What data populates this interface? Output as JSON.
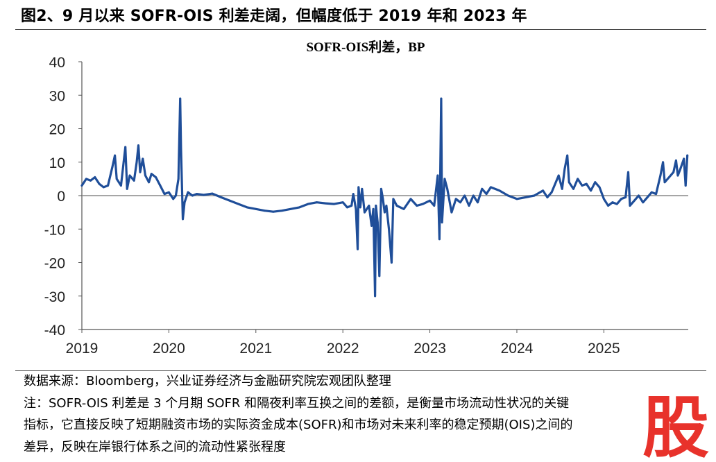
{
  "figure": {
    "title": "图2、9 月以来 SOFR-OIS 利差走阔，但幅度低于 2019 年和 2023 年",
    "source": "数据来源：Bloomberg，兴业证券经济与金融研究院宏观团队整理",
    "note_lines": [
      "注：SOFR-OIS 利差是 3 个月期 SOFR 和隔夜利率互换之间的差额，是衡量市场流动性状况的关键",
      "指标，它直接反映了短期融资市场的实际资金成本(SOFR)和市场对未来利率的稳定预期(OIS)之间的",
      "差异，反映在岸银行体系之间的流动性紧张程度"
    ],
    "watermark": "股"
  },
  "chart_data": {
    "type": "line",
    "title": "SOFR-OIS利差，BP",
    "xlabel": "",
    "ylabel": "",
    "ylim": [
      -40,
      40
    ],
    "yticks": [
      40,
      30,
      20,
      10,
      0,
      -10,
      -20,
      -30,
      -40
    ],
    "xlim": [
      2019.0,
      2025.97
    ],
    "xticks": [
      2019,
      2020,
      2021,
      2022,
      2023,
      2024,
      2025
    ],
    "grid": false,
    "zero_line": true,
    "colors": {
      "series": "#1f4e99",
      "zero_line": "#888888",
      "axis": "#555555"
    },
    "series": [
      {
        "name": "",
        "points": [
          [
            2019.0,
            3.0
          ],
          [
            2019.05,
            5.0
          ],
          [
            2019.1,
            4.5
          ],
          [
            2019.15,
            5.5
          ],
          [
            2019.2,
            3.5
          ],
          [
            2019.25,
            2.5
          ],
          [
            2019.3,
            3.0
          ],
          [
            2019.35,
            8.5
          ],
          [
            2019.38,
            12.0
          ],
          [
            2019.4,
            5.0
          ],
          [
            2019.45,
            3.0
          ],
          [
            2019.48,
            10.0
          ],
          [
            2019.5,
            14.5
          ],
          [
            2019.52,
            2.0
          ],
          [
            2019.55,
            6.0
          ],
          [
            2019.6,
            4.5
          ],
          [
            2019.63,
            10.0
          ],
          [
            2019.65,
            15.0
          ],
          [
            2019.67,
            7.0
          ],
          [
            2019.7,
            11.0
          ],
          [
            2019.73,
            6.0
          ],
          [
            2019.77,
            4.0
          ],
          [
            2019.8,
            6.5
          ],
          [
            2019.85,
            5.5
          ],
          [
            2019.9,
            3.0
          ],
          [
            2019.95,
            0.5
          ],
          [
            2020.0,
            1.0
          ],
          [
            2020.05,
            -1.0
          ],
          [
            2020.08,
            0.0
          ],
          [
            2020.11,
            5.0
          ],
          [
            2020.13,
            29.0
          ],
          [
            2020.14,
            14.0
          ],
          [
            2020.16,
            -7.0
          ],
          [
            2020.18,
            -2.0
          ],
          [
            2020.22,
            1.0
          ],
          [
            2020.27,
            0.0
          ],
          [
            2020.32,
            0.5
          ],
          [
            2020.4,
            0.2
          ],
          [
            2020.5,
            0.6
          ],
          [
            2020.6,
            -0.5
          ],
          [
            2020.7,
            -1.5
          ],
          [
            2020.8,
            -2.5
          ],
          [
            2020.9,
            -3.5
          ],
          [
            2021.0,
            -4.0
          ],
          [
            2021.1,
            -4.5
          ],
          [
            2021.2,
            -4.8
          ],
          [
            2021.3,
            -4.5
          ],
          [
            2021.4,
            -4.0
          ],
          [
            2021.5,
            -3.5
          ],
          [
            2021.6,
            -2.5
          ],
          [
            2021.7,
            -2.0
          ],
          [
            2021.8,
            -2.3
          ],
          [
            2021.9,
            -2.5
          ],
          [
            2022.0,
            -2.0
          ],
          [
            2022.05,
            -3.5
          ],
          [
            2022.1,
            -3.0
          ],
          [
            2022.12,
            0.5
          ],
          [
            2022.15,
            -4.0
          ],
          [
            2022.17,
            -16.0
          ],
          [
            2022.18,
            2.5
          ],
          [
            2022.2,
            -3.5
          ],
          [
            2022.22,
            2.0
          ],
          [
            2022.25,
            -5.0
          ],
          [
            2022.3,
            -3.0
          ],
          [
            2022.33,
            -9.0
          ],
          [
            2022.35,
            -4.0
          ],
          [
            2022.37,
            -30.0
          ],
          [
            2022.38,
            -3.0
          ],
          [
            2022.4,
            -8.0
          ],
          [
            2022.42,
            -24.0
          ],
          [
            2022.44,
            2.0
          ],
          [
            2022.46,
            -1.0
          ],
          [
            2022.48,
            -5.0
          ],
          [
            2022.5,
            -3.0
          ],
          [
            2022.53,
            -10.0
          ],
          [
            2022.56,
            -20.0
          ],
          [
            2022.58,
            -1.0
          ],
          [
            2022.62,
            -3.0
          ],
          [
            2022.7,
            -4.0
          ],
          [
            2022.78,
            -1.0
          ],
          [
            2022.85,
            -3.0
          ],
          [
            2022.92,
            -2.5
          ],
          [
            2023.0,
            -1.5
          ],
          [
            2023.05,
            -3.0
          ],
          [
            2023.09,
            6.0
          ],
          [
            2023.11,
            -13.0
          ],
          [
            2023.13,
            29.0
          ],
          [
            2023.14,
            -8.0
          ],
          [
            2023.17,
            5.0
          ],
          [
            2023.2,
            2.0
          ],
          [
            2023.25,
            -5.0
          ],
          [
            2023.3,
            -1.0
          ],
          [
            2023.35,
            -2.0
          ],
          [
            2023.4,
            0.0
          ],
          [
            2023.45,
            -3.0
          ],
          [
            2023.5,
            0.0
          ],
          [
            2023.55,
            -2.0
          ],
          [
            2023.6,
            2.0
          ],
          [
            2023.65,
            0.5
          ],
          [
            2023.7,
            2.5
          ],
          [
            2023.8,
            1.5
          ],
          [
            2023.9,
            0.0
          ],
          [
            2024.0,
            -1.0
          ],
          [
            2024.1,
            -0.5
          ],
          [
            2024.2,
            0.0
          ],
          [
            2024.3,
            1.5
          ],
          [
            2024.35,
            -0.5
          ],
          [
            2024.4,
            1.0
          ],
          [
            2024.48,
            6.0
          ],
          [
            2024.52,
            2.0
          ],
          [
            2024.55,
            8.0
          ],
          [
            2024.58,
            12.0
          ],
          [
            2024.6,
            4.0
          ],
          [
            2024.65,
            2.0
          ],
          [
            2024.7,
            5.0
          ],
          [
            2024.75,
            3.0
          ],
          [
            2024.8,
            3.5
          ],
          [
            2024.85,
            1.5
          ],
          [
            2024.9,
            4.0
          ],
          [
            2024.95,
            2.5
          ],
          [
            2025.0,
            -1.0
          ],
          [
            2025.05,
            -3.0
          ],
          [
            2025.1,
            -2.0
          ],
          [
            2025.15,
            -2.5
          ],
          [
            2025.2,
            -1.0
          ],
          [
            2025.25,
            -0.5
          ],
          [
            2025.28,
            7.0
          ],
          [
            2025.3,
            -3.0
          ],
          [
            2025.35,
            -1.5
          ],
          [
            2025.4,
            0.0
          ],
          [
            2025.45,
            -2.0
          ],
          [
            2025.5,
            -0.5
          ],
          [
            2025.55,
            1.0
          ],
          [
            2025.6,
            0.5
          ],
          [
            2025.65,
            6.0
          ],
          [
            2025.68,
            10.0
          ],
          [
            2025.7,
            4.0
          ],
          [
            2025.75,
            5.5
          ],
          [
            2025.8,
            7.0
          ],
          [
            2025.83,
            10.5
          ],
          [
            2025.85,
            6.0
          ],
          [
            2025.88,
            8.0
          ],
          [
            2025.92,
            11.0
          ],
          [
            2025.94,
            3.0
          ],
          [
            2025.96,
            12.0
          ]
        ]
      }
    ]
  }
}
